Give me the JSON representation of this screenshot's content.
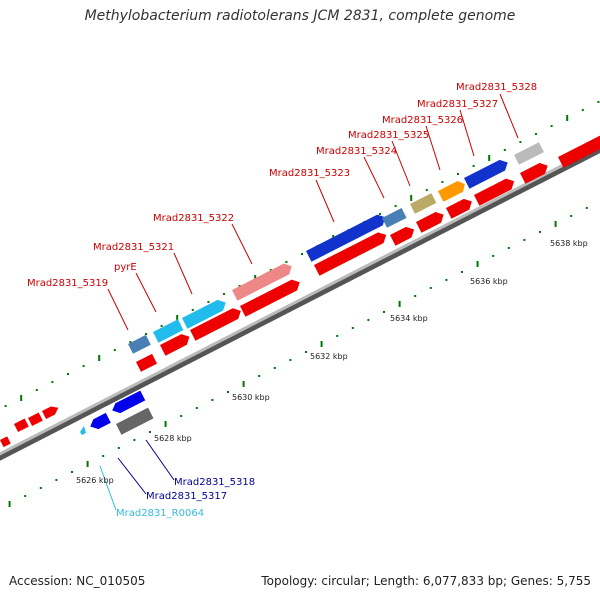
{
  "title": "Methylobacterium radiotolerans JCM 2831, complete genome",
  "footer": {
    "accession": "Accession: NC_010505",
    "summary": "Topology: circular; Length: 6,077,833 bp; Genes: 5,755"
  },
  "scale_labels": [
    "5626 kbp",
    "5628 kbp",
    "5630 kbp",
    "5632 kbp",
    "5634 kbp",
    "5636 kbp",
    "5638 kbp"
  ],
  "gene_labels": {
    "mrad2831_5319": "Mrad2831_5319",
    "pyre": "pyrE",
    "mrad2831_5321": "Mrad2831_5321",
    "mrad2831_5322": "Mrad2831_5322",
    "mrad2831_5323": "Mrad2831_5323",
    "mrad2831_5324": "Mrad2831_5324",
    "mrad2831_5325": "Mrad2831_5325",
    "mrad2831_5326": "Mrad2831_5326",
    "mrad2831_5327": "Mrad2831_5327",
    "mrad2831_5328": "Mrad2831_5328",
    "mrad2831_5318": "Mrad2831_5318",
    "mrad2831_5317": "Mrad2831_5317",
    "mrad2831_r0064": "Mrad2831_R0064"
  },
  "colors": {
    "label_red": "#cc0000",
    "label_blue": "#000099",
    "label_cyan": "#33bbdd",
    "cds_red": "#ee0000",
    "tick_green": "#007700",
    "backbone": "#999999"
  }
}
